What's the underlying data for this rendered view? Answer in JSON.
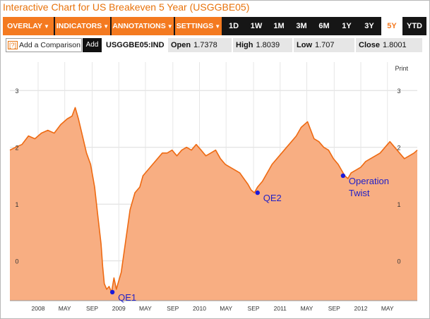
{
  "title": "Interactive Chart for US Breakeven 5 Year (USGGBE05)",
  "menus": [
    {
      "label": "OVERLAY",
      "caret": "▼"
    },
    {
      "label": "INDICATORS",
      "caret": "▼"
    },
    {
      "label": "ANNOTATIONS",
      "caret": "▼"
    },
    {
      "label": "SETTINGS",
      "caret": "▼"
    }
  ],
  "ranges": [
    "1D",
    "1W",
    "1M",
    "3M",
    "6M",
    "1Y",
    "3Y",
    "5Y",
    "YTD"
  ],
  "active_range": "5Y",
  "compare": {
    "icon": "[?]",
    "placeholder": "Add a Comparison",
    "button": "Add"
  },
  "ticker": "USGGBE05:IND",
  "stats": {
    "open": {
      "label": "Open",
      "value": "1.7378"
    },
    "high": {
      "label": "High",
      "value": "1.8039"
    },
    "low": {
      "label": "Low",
      "value": "1.707"
    },
    "close": {
      "label": "Close",
      "value": "1.8001"
    }
  },
  "print_label": "Print",
  "colors": {
    "accent": "#f47a20",
    "area_fill": "#f8ae82",
    "line": "#ee6a12",
    "marker": "#1a1adb",
    "annotation": "#1f1fc8"
  },
  "chart_data": {
    "type": "area",
    "ylim": [
      -0.7,
      3.5
    ],
    "y_ticks": [
      0,
      1,
      2,
      3
    ],
    "x_tick_labels": [
      "2008",
      "MAY",
      "SEP",
      "2009",
      "MAY",
      "SEP",
      "2010",
      "MAY",
      "SEP",
      "2011",
      "MAY",
      "SEP",
      "2012",
      "MAY"
    ],
    "x_ticks_t": [
      2008.0,
      2008.33,
      2008.67,
      2009.0,
      2009.33,
      2009.67,
      2010.0,
      2010.33,
      2010.67,
      2011.0,
      2011.33,
      2011.67,
      2012.0,
      2012.33
    ],
    "xlim": [
      2007.65,
      2012.7
    ],
    "series": [
      {
        "x": [
          2007.65,
          2007.72,
          2007.8,
          2007.88,
          2007.96,
          2008.04,
          2008.12,
          2008.2,
          2008.28,
          2008.36,
          2008.42,
          2008.46,
          2008.5,
          2008.55,
          2008.6,
          2008.65,
          2008.7,
          2008.74,
          2008.78,
          2008.8,
          2008.82,
          2008.85,
          2008.88,
          2008.91,
          2008.94,
          2008.97,
          2009.0,
          2009.03,
          2009.08,
          2009.14,
          2009.2,
          2009.26,
          2009.3,
          2009.36,
          2009.42,
          2009.48,
          2009.54,
          2009.6,
          2009.66,
          2009.72,
          2009.78,
          2009.84,
          2009.9,
          2009.96,
          2010.02,
          2010.08,
          2010.14,
          2010.2,
          2010.26,
          2010.32,
          2010.38,
          2010.44,
          2010.5,
          2010.55,
          2010.6,
          2010.64,
          2010.68,
          2010.72,
          2010.78,
          2010.84,
          2010.9,
          2010.96,
          2011.02,
          2011.08,
          2011.14,
          2011.2,
          2011.26,
          2011.3,
          2011.34,
          2011.38,
          2011.42,
          2011.48,
          2011.54,
          2011.6,
          2011.66,
          2011.72,
          2011.76,
          2011.8,
          2011.84,
          2011.88,
          2011.94,
          2012.0,
          2012.06,
          2012.12,
          2012.18,
          2012.24,
          2012.3,
          2012.36,
          2012.42,
          2012.48,
          2012.54,
          2012.6,
          2012.66,
          2012.7
        ],
        "y": [
          1.95,
          2.0,
          2.05,
          2.2,
          2.15,
          2.25,
          2.3,
          2.25,
          2.4,
          2.5,
          2.55,
          2.7,
          2.5,
          2.2,
          1.9,
          1.7,
          1.3,
          0.8,
          0.3,
          -0.1,
          -0.4,
          -0.5,
          -0.45,
          -0.55,
          -0.3,
          -0.5,
          -0.35,
          -0.2,
          0.3,
          0.9,
          1.2,
          1.3,
          1.5,
          1.6,
          1.7,
          1.8,
          1.9,
          1.9,
          1.95,
          1.85,
          1.95,
          2.0,
          1.95,
          2.05,
          1.95,
          1.85,
          1.9,
          1.95,
          1.8,
          1.7,
          1.65,
          1.6,
          1.55,
          1.45,
          1.35,
          1.25,
          1.2,
          1.3,
          1.4,
          1.55,
          1.7,
          1.8,
          1.9,
          2.0,
          2.1,
          2.2,
          2.35,
          2.4,
          2.45,
          2.3,
          2.15,
          2.1,
          2.0,
          1.95,
          1.8,
          1.7,
          1.6,
          1.5,
          1.45,
          1.55,
          1.6,
          1.65,
          1.75,
          1.8,
          1.85,
          1.9,
          2.0,
          2.1,
          2.0,
          1.9,
          1.8,
          1.85,
          1.9,
          1.95
        ]
      }
    ],
    "annotations": [
      {
        "label": "QE1",
        "x": 2008.92,
        "y": -0.55
      },
      {
        "label": "QE2",
        "x": 2010.72,
        "y": 1.2
      },
      {
        "label": "Operation",
        "label2": "Twist",
        "x": 2011.78,
        "y": 1.5
      }
    ]
  }
}
